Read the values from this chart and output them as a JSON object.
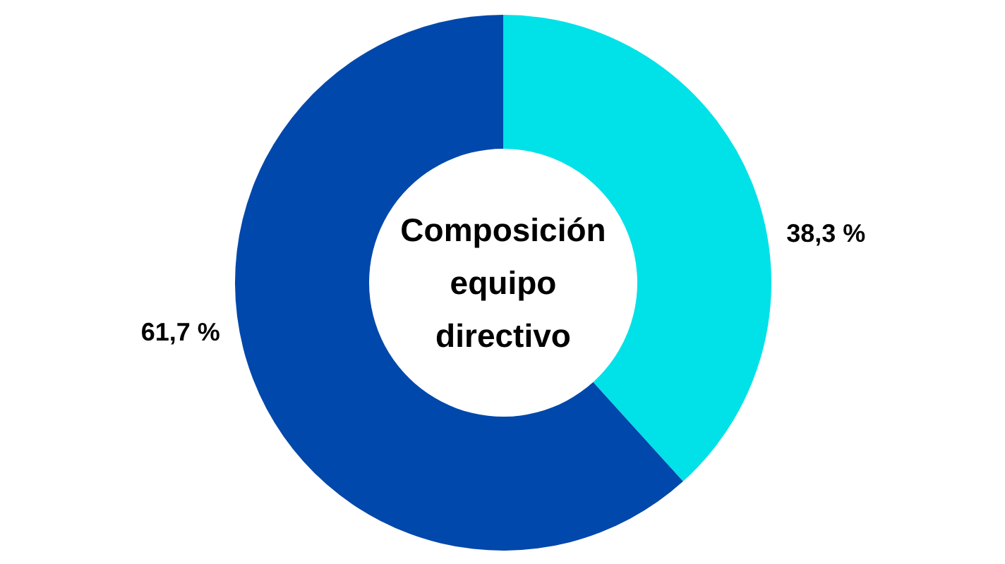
{
  "chart_data": {
    "type": "donut",
    "title": "Composición equipo directivo",
    "categories": [
      null,
      null
    ],
    "values": [
      38.3,
      61.7
    ],
    "colors": [
      "#00e1e8",
      "#0048ab"
    ],
    "value_labels": [
      "38,3 %",
      "61,7 %"
    ]
  }
}
